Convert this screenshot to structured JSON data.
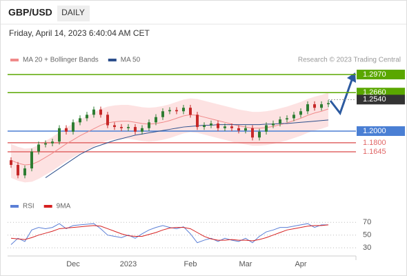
{
  "header": {
    "symbol": "GBP/USD",
    "period": "DAILY",
    "timestamp": "Friday, April 14, 2023 6:40:04 AM CET"
  },
  "chart_data": [
    {
      "type": "candlestick",
      "source": "Research © 2023 Trading Central",
      "categories": [
        null,
        null,
        null,
        null,
        null,
        null,
        null,
        null,
        null,
        "Dec",
        null,
        null,
        null,
        null,
        null,
        null,
        null,
        "2023",
        null,
        null,
        null,
        null,
        null,
        null,
        null,
        null,
        "Feb",
        null,
        null,
        null,
        null,
        null,
        null,
        null,
        "Mar",
        null,
        null,
        null,
        null,
        null,
        null,
        null,
        "Apr",
        null,
        null,
        null,
        null
      ],
      "open": [
        1.15,
        1.142,
        1.124,
        1.136,
        1.165,
        1.177,
        1.179,
        1.182,
        1.205,
        1.199,
        1.215,
        1.222,
        1.228,
        1.237,
        1.228,
        1.21,
        1.207,
        1.205,
        1.207,
        1.199,
        1.205,
        1.215,
        1.224,
        1.234,
        1.236,
        1.234,
        1.24,
        1.228,
        1.207,
        1.21,
        1.213,
        1.205,
        1.208,
        1.205,
        1.201,
        1.205,
        1.189,
        1.199,
        1.21,
        1.213,
        1.22,
        1.222,
        1.228,
        1.234,
        1.246,
        1.24,
        1.246
      ],
      "high": [
        1.155,
        1.147,
        1.141,
        1.17,
        1.182,
        1.184,
        1.187,
        1.21,
        1.21,
        1.22,
        1.227,
        1.233,
        1.242,
        1.242,
        1.233,
        1.215,
        1.212,
        1.212,
        1.212,
        1.21,
        1.22,
        1.229,
        1.239,
        1.241,
        1.241,
        1.245,
        1.245,
        1.233,
        1.215,
        1.218,
        1.218,
        1.213,
        1.213,
        1.21,
        1.21,
        1.21,
        1.204,
        1.215,
        1.218,
        1.225,
        1.227,
        1.233,
        1.239,
        1.251,
        1.251,
        1.251,
        1.253
      ],
      "low": [
        1.137,
        1.119,
        1.119,
        1.131,
        1.16,
        1.172,
        1.174,
        1.177,
        1.194,
        1.194,
        1.21,
        1.217,
        1.223,
        1.223,
        1.205,
        1.202,
        1.2,
        1.2,
        1.194,
        1.194,
        1.2,
        1.21,
        1.219,
        1.229,
        1.229,
        1.229,
        1.223,
        1.202,
        1.202,
        1.205,
        1.2,
        1.2,
        1.2,
        1.196,
        1.196,
        1.184,
        1.184,
        1.194,
        1.205,
        1.208,
        1.215,
        1.217,
        1.223,
        1.229,
        1.235,
        1.235,
        1.241
      ],
      "close": [
        1.142,
        1.124,
        1.136,
        1.165,
        1.177,
        1.179,
        1.182,
        1.205,
        1.199,
        1.215,
        1.222,
        1.228,
        1.237,
        1.228,
        1.21,
        1.207,
        1.205,
        1.207,
        1.199,
        1.205,
        1.215,
        1.224,
        1.234,
        1.236,
        1.234,
        1.24,
        1.228,
        1.207,
        1.21,
        1.213,
        1.205,
        1.208,
        1.205,
        1.201,
        1.205,
        1.189,
        1.199,
        1.21,
        1.213,
        1.22,
        1.222,
        1.228,
        1.234,
        1.246,
        1.24,
        1.246,
        1.248
      ],
      "up_color": "#2e7d32",
      "down_color": "#c62828",
      "band": {
        "color": "#fde2e2",
        "upper": [
          1.178,
          1.173,
          1.17,
          1.171,
          1.176,
          1.183,
          1.19,
          1.198,
          1.206,
          1.213,
          1.22,
          1.226,
          1.232,
          1.238,
          1.242,
          1.244,
          1.245,
          1.245,
          1.243,
          1.241,
          1.24,
          1.241,
          1.243,
          1.246,
          1.25,
          1.254,
          1.256,
          1.255,
          1.252,
          1.249,
          1.246,
          1.243,
          1.24,
          1.237,
          1.235,
          1.233,
          1.233,
          1.234,
          1.236,
          1.239,
          1.242,
          1.246,
          1.25,
          1.255,
          1.259,
          1.262,
          1.266
        ],
        "lower": [
          1.12,
          1.115,
          1.112,
          1.113,
          1.118,
          1.125,
          1.132,
          1.14,
          1.148,
          1.155,
          1.162,
          1.168,
          1.174,
          1.18,
          1.184,
          1.186,
          1.187,
          1.187,
          1.185,
          1.183,
          1.182,
          1.183,
          1.185,
          1.188,
          1.192,
          1.196,
          1.198,
          1.197,
          1.194,
          1.191,
          1.188,
          1.185,
          1.182,
          1.179,
          1.177,
          1.175,
          1.175,
          1.176,
          1.178,
          1.181,
          1.184,
          1.188,
          1.192,
          1.197,
          1.201,
          1.204,
          1.208
        ]
      },
      "series": [
        {
          "name": "MA 20 + Bollinger Bands",
          "color": "#f08a8a",
          "values": [
            1.15,
            1.145,
            1.142,
            1.143,
            1.148,
            1.155,
            1.162,
            1.17,
            1.178,
            1.185,
            1.192,
            1.198,
            1.204,
            1.21,
            1.214,
            1.216,
            1.217,
            1.217,
            1.215,
            1.213,
            1.212,
            1.213,
            1.215,
            1.218,
            1.222,
            1.226,
            1.228,
            1.227,
            1.224,
            1.221,
            1.218,
            1.215,
            1.212,
            1.209,
            1.207,
            1.205,
            1.205,
            1.206,
            1.208,
            1.211,
            1.214,
            1.218,
            1.222,
            1.227,
            1.231,
            1.234,
            1.238
          ]
        },
        {
          "name": "MA 50",
          "color": "#2c4f8c",
          "values": [
            null,
            null,
            null,
            null,
            null,
            1.12,
            1.128,
            1.136,
            1.144,
            1.152,
            1.16,
            1.166,
            1.172,
            1.176,
            1.18,
            1.184,
            1.187,
            1.19,
            1.193,
            1.195,
            1.197,
            1.199,
            1.201,
            1.203,
            1.205,
            1.207,
            1.208,
            1.209,
            1.21,
            1.21,
            1.211,
            1.211,
            1.211,
            1.211,
            1.211,
            1.211,
            1.211,
            1.212,
            1.212,
            1.213,
            1.213,
            1.214,
            1.215,
            1.216,
            1.217,
            1.218,
            1.219
          ]
        }
      ],
      "levels": [
        {
          "value": 1.297,
          "label": "1.2970",
          "color": "#5aa700"
        },
        {
          "value": 1.266,
          "label": "1.2660",
          "color": "#5aa700"
        },
        {
          "value": 1.254,
          "label": "1.2540",
          "color": "#333333"
        },
        {
          "value": 1.2,
          "label": "1.2000",
          "color": "#4a7fd4"
        },
        {
          "value": 1.18,
          "label": "1.1800",
          "color": "#e06666"
        },
        {
          "value": 1.1645,
          "label": "1.1645",
          "color": "#e06666"
        }
      ],
      "ylim": [
        1.0923,
        1.3112
      ]
    },
    {
      "type": "line",
      "series": [
        {
          "name": "RSI",
          "color": "#5b7fd6",
          "values": [
            35,
            45,
            40,
            58,
            62,
            60,
            62,
            68,
            60,
            65,
            66,
            67,
            68,
            60,
            50,
            48,
            46,
            50,
            45,
            52,
            58,
            62,
            65,
            62,
            60,
            63,
            52,
            38,
            42,
            45,
            40,
            45,
            42,
            40,
            45,
            38,
            48,
            55,
            58,
            62,
            62,
            64,
            66,
            68,
            62,
            66,
            66
          ]
        },
        {
          "name": "9MA",
          "color": "#d62020",
          "values": [
            45,
            44,
            43,
            46,
            50,
            53,
            56,
            60,
            61,
            62,
            63,
            64,
            65,
            64,
            60,
            56,
            52,
            49,
            48,
            48,
            51,
            54,
            58,
            61,
            62,
            62,
            60,
            54,
            48,
            44,
            42,
            42,
            43,
            42,
            42,
            41,
            43,
            46,
            50,
            54,
            58,
            60,
            62,
            64,
            65,
            65,
            66
          ]
        }
      ],
      "ylim": [
        15,
        80
      ],
      "yticks": [
        30,
        50,
        70
      ]
    }
  ]
}
